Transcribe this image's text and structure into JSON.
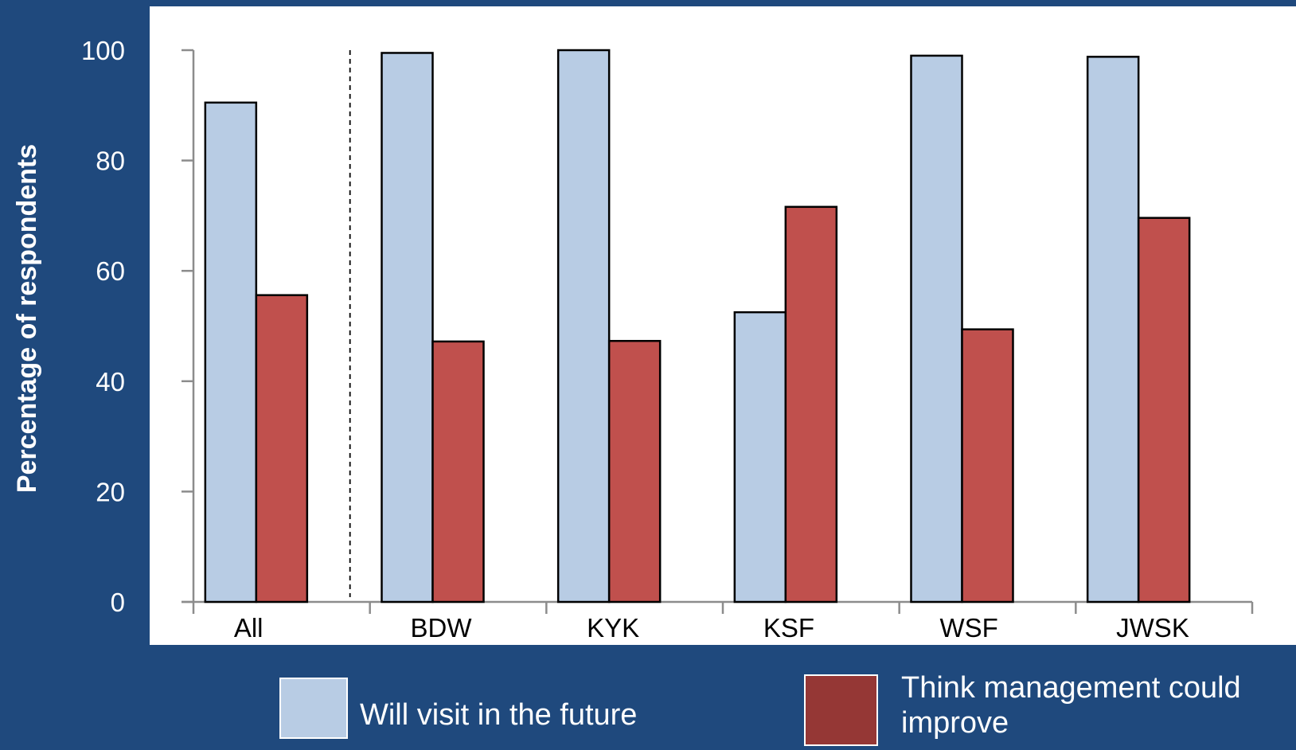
{
  "chart_data": {
    "type": "bar",
    "ylabel": "Percentage of respondents",
    "xlabel": "",
    "ylim": [
      0,
      100
    ],
    "yticks": [
      0,
      20,
      40,
      60,
      80,
      100
    ],
    "categories": [
      "All",
      "BDW",
      "KYK",
      "KSF",
      "WSF",
      "JWSK"
    ],
    "series": [
      {
        "name": "Will visit in the future",
        "color": "#b8cce4",
        "values": [
          90.5,
          99.5,
          100,
          52.5,
          99,
          98.8
        ]
      },
      {
        "name": "Think management could improve",
        "color": "#c0504d",
        "values": [
          55.6,
          47.2,
          47.3,
          71.6,
          49.4,
          69.6
        ]
      }
    ],
    "separator_after": "All",
    "grid": false,
    "legend_position": "bottom"
  },
  "colors": {
    "page_background": "#1f497d",
    "plot_background": "#ffffff",
    "legend_swatch_1": "#b8cce4",
    "legend_swatch_2": "#953735"
  },
  "legend": {
    "item1": "Will visit in the future",
    "item2_line1": "Think management could",
    "item2_line2": "improve"
  }
}
